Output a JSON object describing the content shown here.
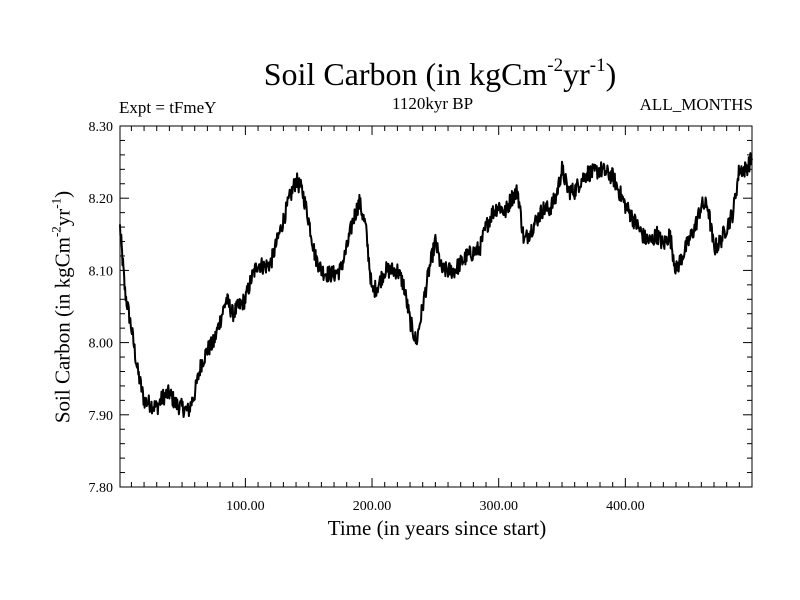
{
  "chart_data": {
    "type": "line",
    "title": "Soil Carbon (in kgCm",
    "title_exp1": "-2",
    "title_mid": "yr",
    "title_exp2": "-1",
    "title_end": ")",
    "subtitle_left": "Expt = tFmeY",
    "subtitle_center": "1120kyr BP",
    "subtitle_right": "ALL_MONTHS",
    "xlabel": "Time (in years since start)",
    "ylabel_pre": "Soil Carbon (in kgCm",
    "ylabel_exp1": "-2",
    "ylabel_mid": "yr",
    "ylabel_exp2": "-1",
    "ylabel_end": ")",
    "xlim": [
      1,
      500
    ],
    "ylim": [
      7.8,
      8.3
    ],
    "x_ticks": [
      100,
      200,
      300,
      400
    ],
    "x_tick_labels": [
      "100.00",
      "200.00",
      "300.00",
      "400.00"
    ],
    "y_ticks": [
      7.8,
      7.9,
      8.0,
      8.1,
      8.2,
      8.3
    ],
    "y_tick_labels": [
      "7.80",
      "7.90",
      "8.00",
      "8.10",
      "8.20",
      "8.30"
    ],
    "series": [
      {
        "name": "Soil Carbon",
        "noise_amplitude": 0.012,
        "x": [
          1,
          5,
          10,
          15,
          20,
          25,
          30,
          35,
          40,
          45,
          50,
          55,
          60,
          65,
          70,
          75,
          80,
          85,
          90,
          95,
          100,
          105,
          110,
          115,
          120,
          125,
          130,
          135,
          140,
          145,
          150,
          155,
          160,
          165,
          170,
          175,
          180,
          185,
          190,
          195,
          200,
          205,
          210,
          215,
          220,
          225,
          230,
          235,
          240,
          245,
          250,
          255,
          260,
          265,
          270,
          275,
          280,
          285,
          290,
          295,
          300,
          305,
          310,
          315,
          320,
          325,
          330,
          335,
          340,
          345,
          350,
          355,
          360,
          365,
          370,
          375,
          380,
          385,
          390,
          395,
          400,
          405,
          410,
          415,
          420,
          425,
          430,
          435,
          440,
          445,
          450,
          455,
          460,
          465,
          470,
          475,
          480,
          485,
          490,
          495,
          500
        ],
        "values": [
          8.16,
          8.07,
          8.02,
          7.96,
          7.92,
          7.915,
          7.91,
          7.925,
          7.93,
          7.915,
          7.91,
          7.905,
          7.93,
          7.97,
          7.99,
          8.0,
          8.03,
          8.06,
          8.04,
          8.05,
          8.06,
          8.09,
          8.11,
          8.105,
          8.11,
          8.14,
          8.17,
          8.2,
          8.225,
          8.21,
          8.17,
          8.12,
          8.1,
          8.095,
          8.095,
          8.1,
          8.13,
          8.17,
          8.195,
          8.16,
          8.07,
          8.08,
          8.1,
          8.1,
          8.1,
          8.08,
          8.03,
          8.0,
          8.05,
          8.1,
          8.14,
          8.1,
          8.1,
          8.1,
          8.11,
          8.12,
          8.125,
          8.13,
          8.16,
          8.18,
          8.19,
          8.18,
          8.2,
          8.21,
          8.14,
          8.155,
          8.17,
          8.185,
          8.185,
          8.2,
          8.24,
          8.21,
          8.21,
          8.225,
          8.235,
          8.235,
          8.24,
          8.235,
          8.23,
          8.21,
          8.19,
          8.175,
          8.16,
          8.145,
          8.14,
          8.15,
          8.135,
          8.15,
          8.1,
          8.12,
          8.14,
          8.16,
          8.19,
          8.19,
          8.13,
          8.14,
          8.16,
          8.18,
          8.24,
          8.24,
          8.255
        ]
      }
    ]
  }
}
